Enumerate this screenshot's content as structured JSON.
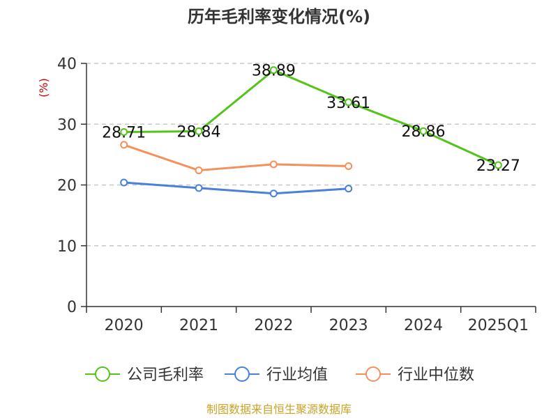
{
  "chart_data": {
    "type": "line",
    "title": "历年毛利率变化情况(%)",
    "ylabel": "(%)",
    "categories": [
      "2020",
      "2021",
      "2022",
      "2023",
      "2024",
      "2025Q1"
    ],
    "ylim": [
      0,
      40
    ],
    "yticks": [
      0,
      10,
      20,
      30,
      40
    ],
    "grid": true,
    "legend_position": "bottom",
    "series": [
      {
        "name": "公司毛利率",
        "color": "#52c41a",
        "labeled": true,
        "values": [
          28.71,
          28.84,
          38.89,
          33.61,
          28.86,
          23.27
        ],
        "labels": [
          "28.71",
          "28.84",
          "38.89",
          "33.61",
          "28.86",
          "23.27"
        ]
      },
      {
        "name": "行业均值",
        "color": "#4a7fdc",
        "labeled": false,
        "values": [
          20.4,
          19.5,
          18.6,
          19.4,
          null,
          null
        ]
      },
      {
        "name": "行业中位数",
        "color": "#f5905b",
        "labeled": false,
        "values": [
          26.6,
          22.4,
          23.4,
          23.1,
          null,
          null
        ]
      }
    ]
  },
  "source": "制图数据来自恒生聚源数据库"
}
